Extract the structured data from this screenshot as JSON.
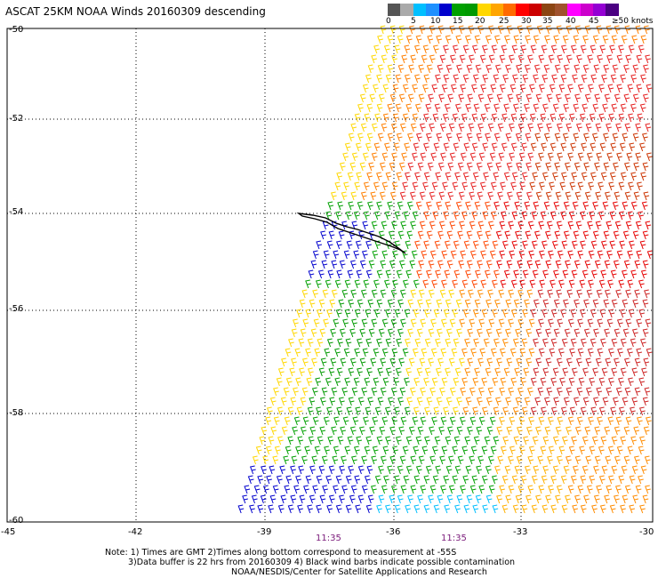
{
  "title": "ASCAT 25KM NOAA Winds 20160309 descending",
  "legend": {
    "colors": [
      "#555555",
      "#aaaaaa",
      "#00bfff",
      "#1e90ff",
      "#0000cd",
      "#00a000",
      "#009900",
      "#ffd700",
      "#ffa500",
      "#ff6a00",
      "#ff0000",
      "#cc0000",
      "#8b4513",
      "#a0522d",
      "#ff00ff",
      "#cc00cc",
      "#9400d3",
      "#4b0082"
    ],
    "ticks": [
      "0",
      "5",
      "10",
      "15",
      "20",
      "25",
      "30",
      "35",
      "40",
      "45",
      "≥50 knots"
    ]
  },
  "axes": {
    "latitudes": [
      "-50",
      "-52",
      "-54",
      "-56",
      "-58",
      "-60"
    ],
    "longitudes": [
      "-45",
      "-42",
      "-39",
      "-36",
      "-33",
      "-30"
    ]
  },
  "times": [
    "11:35",
    "11:35"
  ],
  "notes": [
    "Note: 1) Times are GMT 2)Times along bottom correspond to measurement at -55S",
    "3)Data buffer is 22 hrs from 20160309 4) Black wind barbs indicate possible contamination",
    "NOAA/NESDIS/Center for Satellite Applications and Research"
  ]
}
